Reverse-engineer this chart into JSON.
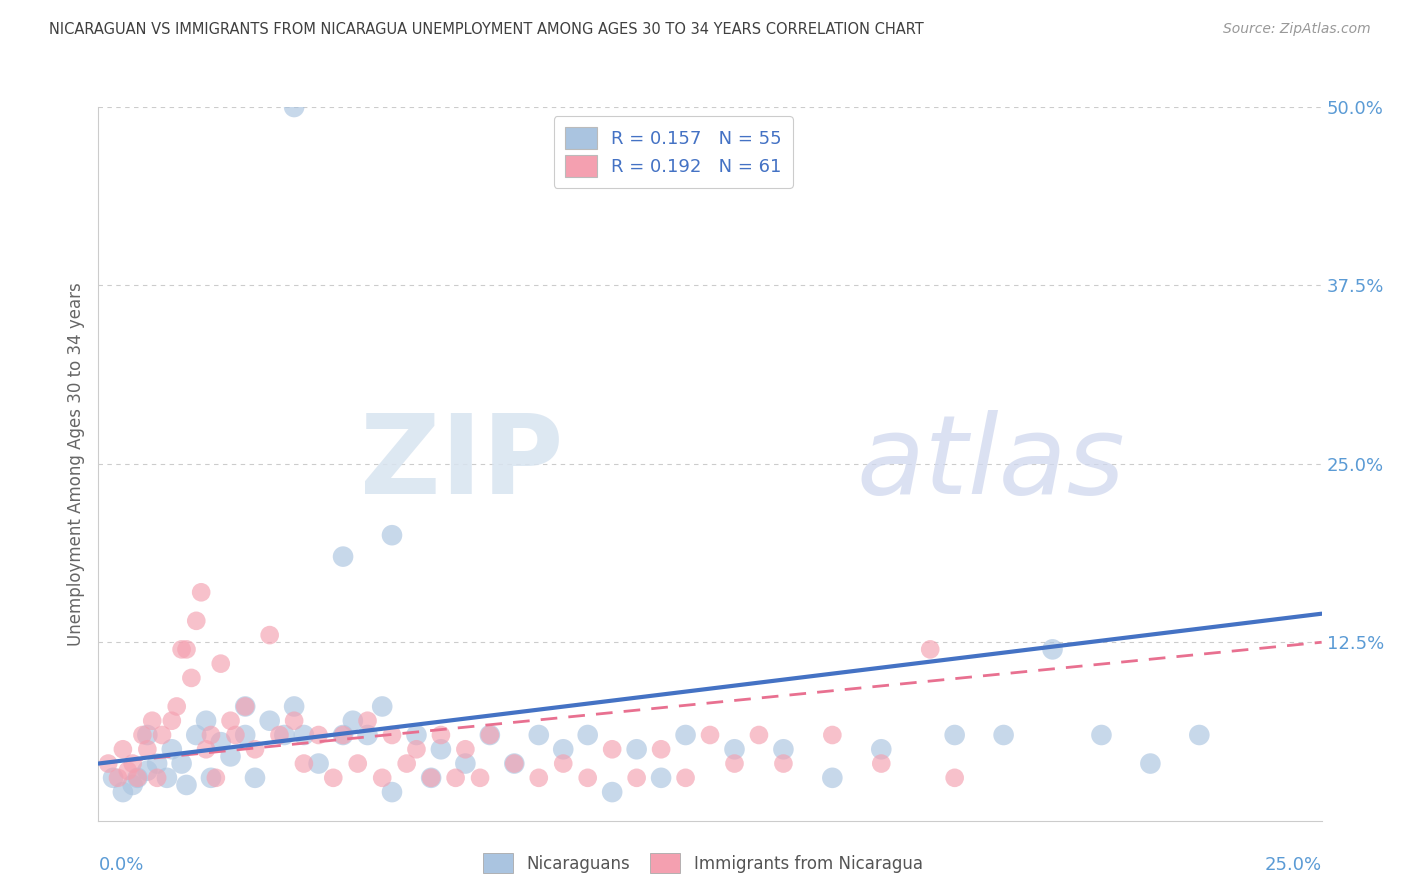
{
  "title": "NICARAGUAN VS IMMIGRANTS FROM NICARAGUA UNEMPLOYMENT AMONG AGES 30 TO 34 YEARS CORRELATION CHART",
  "source": "Source: ZipAtlas.com",
  "ylabel": "Unemployment Among Ages 30 to 34 years",
  "xlim": [
    0.0,
    0.25
  ],
  "ylim": [
    0.0,
    0.5
  ],
  "legend_r1": "R = 0.157",
  "legend_n1": "N = 55",
  "legend_r2": "R = 0.192",
  "legend_n2": "N = 61",
  "blue_color": "#aac4e0",
  "pink_color": "#f4a0b0",
  "blue_line_color": "#4472c4",
  "pink_line_color": "#e87090",
  "title_color": "#404040",
  "axis_label_color": "#5b9bd5",
  "blue_x": [
    0.003,
    0.005,
    0.007,
    0.008,
    0.01,
    0.01,
    0.012,
    0.014,
    0.015,
    0.017,
    0.018,
    0.02,
    0.022,
    0.023,
    0.025,
    0.027,
    0.03,
    0.03,
    0.032,
    0.035,
    0.038,
    0.04,
    0.042,
    0.045,
    0.05,
    0.052,
    0.055,
    0.058,
    0.06,
    0.065,
    0.068,
    0.07,
    0.075,
    0.08,
    0.085,
    0.09,
    0.095,
    0.1,
    0.105,
    0.11,
    0.115,
    0.12,
    0.13,
    0.14,
    0.15,
    0.16,
    0.175,
    0.185,
    0.195,
    0.205,
    0.215,
    0.225,
    0.06,
    0.05,
    0.04
  ],
  "blue_y": [
    0.03,
    0.02,
    0.025,
    0.03,
    0.035,
    0.06,
    0.04,
    0.03,
    0.05,
    0.04,
    0.025,
    0.06,
    0.07,
    0.03,
    0.055,
    0.045,
    0.08,
    0.06,
    0.03,
    0.07,
    0.06,
    0.08,
    0.06,
    0.04,
    0.06,
    0.07,
    0.06,
    0.08,
    0.02,
    0.06,
    0.03,
    0.05,
    0.04,
    0.06,
    0.04,
    0.06,
    0.05,
    0.06,
    0.02,
    0.05,
    0.03,
    0.06,
    0.05,
    0.05,
    0.03,
    0.05,
    0.06,
    0.06,
    0.12,
    0.06,
    0.04,
    0.06,
    0.2,
    0.185,
    0.5
  ],
  "pink_x": [
    0.002,
    0.004,
    0.005,
    0.006,
    0.007,
    0.008,
    0.009,
    0.01,
    0.011,
    0.012,
    0.013,
    0.015,
    0.016,
    0.017,
    0.018,
    0.019,
    0.02,
    0.021,
    0.022,
    0.023,
    0.024,
    0.025,
    0.027,
    0.028,
    0.03,
    0.032,
    0.035,
    0.037,
    0.04,
    0.042,
    0.045,
    0.048,
    0.05,
    0.053,
    0.055,
    0.058,
    0.06,
    0.063,
    0.065,
    0.068,
    0.07,
    0.073,
    0.075,
    0.078,
    0.08,
    0.085,
    0.09,
    0.095,
    0.1,
    0.105,
    0.11,
    0.115,
    0.12,
    0.125,
    0.13,
    0.135,
    0.14,
    0.15,
    0.16,
    0.17,
    0.175
  ],
  "pink_y": [
    0.04,
    0.03,
    0.05,
    0.035,
    0.04,
    0.03,
    0.06,
    0.05,
    0.07,
    0.03,
    0.06,
    0.07,
    0.08,
    0.12,
    0.12,
    0.1,
    0.14,
    0.16,
    0.05,
    0.06,
    0.03,
    0.11,
    0.07,
    0.06,
    0.08,
    0.05,
    0.13,
    0.06,
    0.07,
    0.04,
    0.06,
    0.03,
    0.06,
    0.04,
    0.07,
    0.03,
    0.06,
    0.04,
    0.05,
    0.03,
    0.06,
    0.03,
    0.05,
    0.03,
    0.06,
    0.04,
    0.03,
    0.04,
    0.03,
    0.05,
    0.03,
    0.05,
    0.03,
    0.06,
    0.04,
    0.06,
    0.04,
    0.06,
    0.04,
    0.12,
    0.03
  ],
  "blue_trend_x0": 0.0,
  "blue_trend_x1": 0.25,
  "blue_trend_y0": 0.04,
  "blue_trend_y1": 0.145,
  "pink_trend_x0": 0.0,
  "pink_trend_x1": 0.25,
  "pink_trend_y0": 0.04,
  "pink_trend_y1": 0.125,
  "ytick_vals": [
    0.0,
    0.125,
    0.25,
    0.375,
    0.5
  ],
  "ytick_labels": [
    "",
    "12.5%",
    "25.0%",
    "37.5%",
    "50.0%"
  ]
}
